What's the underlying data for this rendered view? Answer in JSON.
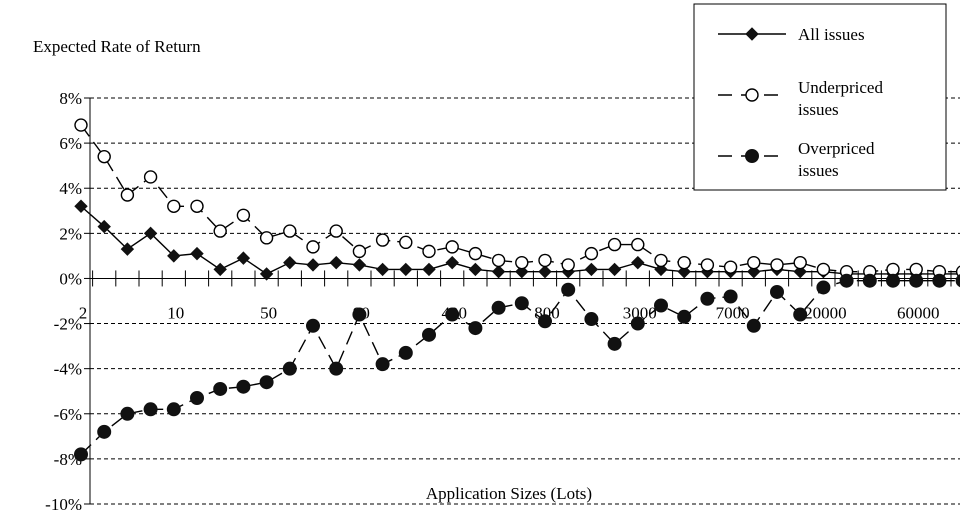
{
  "chart_data": {
    "type": "line",
    "ylabel": "Expected Rate of Return",
    "xlabel": "Application Sizes (Lots)",
    "ylim": [
      -10,
      8
    ],
    "y_ticks": [
      8,
      6,
      4,
      2,
      0,
      -2,
      -4,
      -6,
      -8,
      -10
    ],
    "y_tick_labels": [
      "8%",
      "6%",
      "4%",
      "2%",
      "0%",
      "-2%",
      "-4%",
      "-6%",
      "-8%",
      "-10%"
    ],
    "x_tick_labels": [
      {
        "label": "2",
        "index": 0
      },
      {
        "label": "10",
        "index": 4
      },
      {
        "label": "50",
        "index": 8
      },
      {
        "label": "90",
        "index": 12
      },
      {
        "label": "400",
        "index": 16
      },
      {
        "label": "800",
        "index": 20
      },
      {
        "label": "3000",
        "index": 24
      },
      {
        "label": "7000",
        "index": 28
      },
      {
        "label": "20000",
        "index": 32
      },
      {
        "label": "60000",
        "index": 36
      }
    ],
    "grid": "horizontal dashed",
    "legend_position": "top-right",
    "series": [
      {
        "name": "All issues",
        "marker": "filled-diamond",
        "line": "solid",
        "values": [
          3.2,
          2.3,
          1.3,
          2.0,
          1.0,
          1.1,
          0.4,
          0.9,
          0.2,
          0.7,
          0.6,
          0.7,
          0.6,
          0.4,
          0.4,
          0.4,
          0.7,
          0.4,
          0.3,
          0.3,
          0.3,
          0.3,
          0.4,
          0.4,
          0.7,
          0.4,
          0.3,
          0.3,
          0.3,
          0.3,
          0.4,
          0.3,
          0.3,
          0.2,
          0.2,
          0.2,
          0.2,
          0.2,
          0.2
        ]
      },
      {
        "name": "Underpriced issues",
        "marker": "open-circle",
        "line": "dashed",
        "values": [
          6.8,
          5.4,
          3.7,
          4.5,
          3.2,
          3.2,
          2.1,
          2.8,
          1.8,
          2.1,
          1.4,
          2.1,
          1.2,
          1.7,
          1.6,
          1.2,
          1.4,
          1.1,
          0.8,
          0.7,
          0.8,
          0.6,
          1.1,
          1.5,
          1.5,
          0.8,
          0.7,
          0.6,
          0.5,
          0.7,
          0.6,
          0.7,
          0.4,
          0.3,
          0.3,
          0.4,
          0.4,
          0.3,
          0.3
        ]
      },
      {
        "name": "Overpriced issues",
        "marker": "filled-circle",
        "line": "dashed",
        "values": [
          -7.8,
          -6.8,
          -6.0,
          -5.8,
          -5.8,
          -5.3,
          -4.9,
          -4.8,
          -4.6,
          -4.0,
          -2.1,
          -4.0,
          -1.6,
          -3.8,
          -3.3,
          -2.5,
          -1.6,
          -2.2,
          -1.3,
          -1.1,
          -1.9,
          -0.5,
          -1.8,
          -2.9,
          -2.0,
          -1.2,
          -1.7,
          -0.9,
          -0.8,
          -2.1,
          -0.6,
          -1.6,
          -0.4,
          -0.1,
          -0.1,
          -0.1,
          -0.1,
          -0.1,
          -0.1
        ]
      }
    ],
    "legend": [
      {
        "label_lines": [
          "All issues"
        ]
      },
      {
        "label_lines": [
          "Underpriced",
          "issues"
        ]
      },
      {
        "label_lines": [
          "Overpriced",
          "issues"
        ]
      }
    ]
  }
}
